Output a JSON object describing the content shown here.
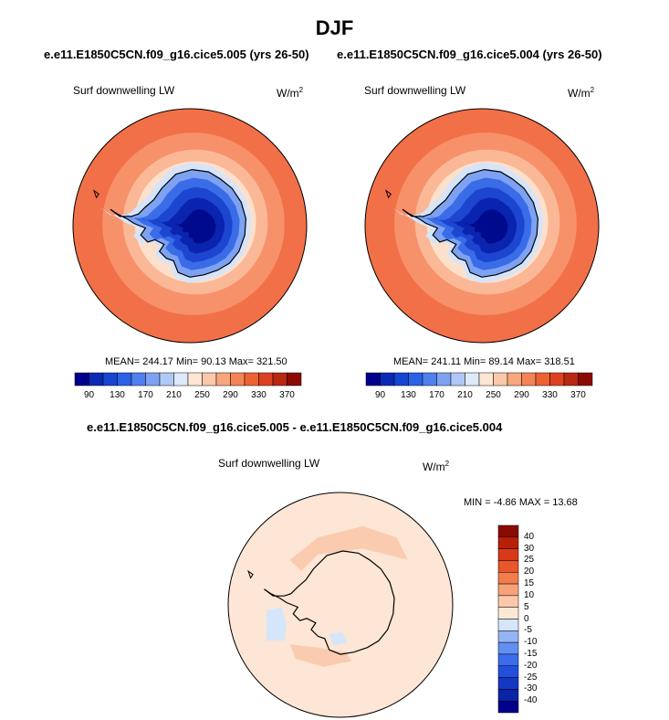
{
  "page_title": "DJF",
  "top_subtitles": [
    "e.e11.E1850C5CN.f09_g16.cice5.005 (yrs 26-50)",
    "e.e11.E1850C5CN.f09_g16.cice5.004 (yrs 26-50)"
  ],
  "diff_subtitle": "e.e11.E1850C5CN.f09_g16.cice5.005 - e.e11.E1850C5CN.f09_g16.cice5.004",
  "variable": "Surf downwelling LW",
  "units": "W/m",
  "units_exp": "2",
  "panels": [
    {
      "stats": "MEAN= 244.17  Min=  90.13  Max= 321.50"
    },
    {
      "stats": "MEAN= 241.11  Min=  89.14  Max= 318.51"
    }
  ],
  "diff_stats": "MIN =  -4.86 MAX =  13.68",
  "colorbar": {
    "colors": [
      "#00008b",
      "#0a2ab4",
      "#1446d2",
      "#2a62e6",
      "#5080ee",
      "#7ea2f2",
      "#b0c8f6",
      "#deeafa",
      "#fde6d4",
      "#fcc8aa",
      "#f8a67e",
      "#f48456",
      "#ee6232",
      "#dc4222",
      "#b82812",
      "#8c0a04"
    ],
    "labels": [
      "90",
      "130",
      "170",
      "210",
      "250",
      "290",
      "330",
      "370"
    ]
  },
  "diff_colorbar": {
    "colors": [
      "#00008b",
      "#0a24a8",
      "#1438c4",
      "#2250dc",
      "#3a6cec",
      "#6290f2",
      "#94b4f6",
      "#d6e6fa",
      "#fde8d6",
      "#fcc8ac",
      "#f8a27a",
      "#f27c4a",
      "#e8562a",
      "#d63a18",
      "#b8200a",
      "#8c0a04"
    ],
    "labels": [
      "40",
      "30",
      "25",
      "20",
      "15",
      "10",
      "5",
      "0",
      "-5",
      "-10",
      "-15",
      "-20",
      "-25",
      "-30",
      "-40"
    ]
  },
  "map_colors": {
    "outer": "#f27048",
    "ring2": "#f7916a",
    "ring3": "#fbb896",
    "ring4": "#fde0cc",
    "coast_ice": "#d6e4fa",
    "ice1": "#7ea2f2",
    "ice2": "#3a6ce8",
    "ice3": "#1c46d0",
    "ice4": "#0a24b0",
    "ice5": "#000a8c",
    "diff_bg": "#fde6d6",
    "diff_pos": "#fbcbb0",
    "diff_neg": "#d6e6fa"
  }
}
